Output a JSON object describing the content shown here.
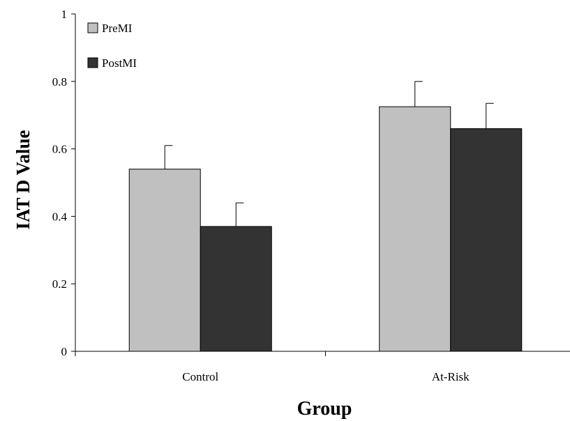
{
  "chart_data": {
    "type": "bar",
    "title": "",
    "xlabel": "Group",
    "ylabel": "IAT D Value",
    "categories": [
      "Control",
      "At-Risk"
    ],
    "series": [
      {
        "name": "PreMI",
        "color": "#c0c0c0",
        "values": [
          0.54,
          0.725
        ],
        "errors": [
          0.07,
          0.075
        ]
      },
      {
        "name": "PostMI",
        "color": "#333333",
        "values": [
          0.37,
          0.66
        ],
        "errors": [
          0.07,
          0.075
        ]
      }
    ],
    "ylim": [
      0,
      1
    ],
    "yticks": [
      0,
      0.2,
      0.4,
      0.6,
      0.8,
      1
    ],
    "ytick_labels": [
      "0",
      "0.2",
      "0.4",
      "0.6",
      "0.8",
      "1"
    ],
    "grid": false,
    "legend_position": "top-left",
    "error_bars": "upper"
  }
}
